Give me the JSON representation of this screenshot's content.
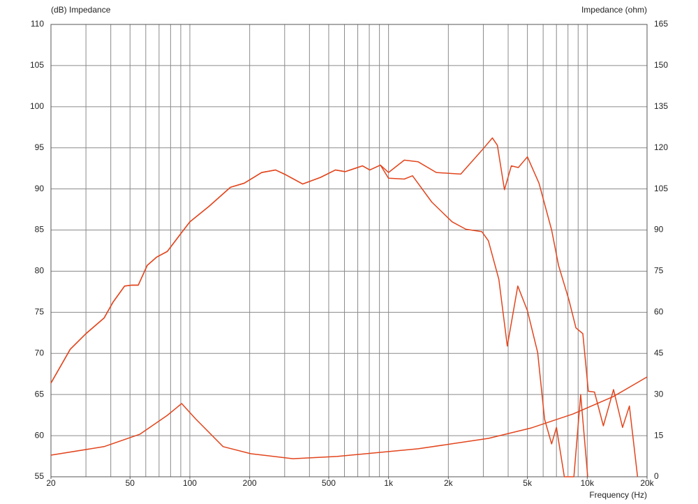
{
  "chart_data": {
    "type": "line",
    "title": "(dB)  Impedance",
    "y2_label": "Impedance (ohm)",
    "x_label": "Frequency (Hz)",
    "xscale": "log",
    "xlim": [
      20,
      20000
    ],
    "xticks": [
      20,
      50,
      100,
      200,
      500,
      {
        "value": 1000,
        "label": "1k"
      },
      {
        "value": 2000,
        "label": "2k"
      },
      {
        "value": 5000,
        "label": "5k"
      },
      {
        "value": 10000,
        "label": "10k"
      },
      {
        "value": 20000,
        "label": "20k"
      }
    ],
    "xgrid": [
      20,
      30,
      40,
      50,
      60,
      70,
      80,
      90,
      100,
      200,
      300,
      400,
      500,
      600,
      700,
      800,
      900,
      1000,
      2000,
      3000,
      4000,
      5000,
      6000,
      7000,
      8000,
      9000,
      10000,
      20000
    ],
    "ylim": [
      55,
      110
    ],
    "yticks": [
      55,
      60,
      65,
      70,
      75,
      80,
      85,
      90,
      95,
      100,
      105,
      110
    ],
    "y2lim": [
      0,
      165
    ],
    "y2ticks": [
      0,
      15,
      30,
      45,
      60,
      75,
      90,
      105,
      120,
      135,
      150,
      165
    ],
    "grid": true,
    "series": [
      {
        "color": "#e2441c",
        "x": [
          20,
          25,
          30,
          37,
          41,
          47,
          51,
          55,
          61,
          68,
          77,
          89,
          100,
          125,
          160,
          188,
          230,
          270,
          305,
          370,
          455,
          540,
          605,
          740,
          805,
          910,
          1000,
          1200,
          1410,
          1740,
          2310,
          2950,
          3330,
          3530,
          3830,
          4150,
          4500,
          5000,
          5720,
          6620,
          7170,
          8090,
          8770,
          9500,
          10130,
          10880,
          12050,
          13570,
          15060,
          16300,
          17920
        ],
        "values": [
          66.4,
          70.5,
          72.4,
          74.3,
          76.2,
          78.2,
          78.3,
          78.3,
          80.7,
          81.7,
          82.4,
          84.4,
          86,
          87.9,
          90.2,
          90.7,
          92,
          92.3,
          91.7,
          90.6,
          91.4,
          92.3,
          92.1,
          92.8,
          92.3,
          92.9,
          92,
          93.5,
          93.3,
          92,
          91.8,
          94.7,
          96.2,
          95.3,
          89.9,
          92.8,
          92.6,
          93.9,
          90.7,
          85,
          80.7,
          76.5,
          73.1,
          72.4,
          65.4,
          65.3,
          61.2,
          65.6,
          61,
          63.6,
          55
        ]
      },
      {
        "color": "#e2441c",
        "x": [
          20,
          25,
          30,
          37,
          41,
          47,
          51,
          55,
          61,
          68,
          77,
          89,
          100,
          125,
          160,
          188,
          230,
          270,
          305,
          370,
          455,
          540,
          605,
          740,
          805,
          910,
          1000,
          1200,
          1320,
          1650,
          2090,
          2450,
          2950,
          3180,
          3590,
          3960,
          4470,
          5000,
          5630,
          6100,
          6620,
          7000,
          7670,
          8570,
          9270,
          10060
        ],
        "values": [
          66.4,
          70.5,
          72.4,
          74.3,
          76.2,
          78.2,
          78.3,
          78.3,
          80.7,
          81.7,
          82.4,
          84.4,
          86,
          87.9,
          90.2,
          90.7,
          92,
          92.3,
          91.7,
          90.6,
          91.4,
          92.3,
          92.1,
          92.8,
          92.3,
          92.9,
          91.3,
          91.2,
          91.6,
          88.4,
          86,
          85.1,
          84.8,
          83.7,
          79,
          70.9,
          78.2,
          75.2,
          70.1,
          62,
          59,
          61,
          55,
          55,
          65,
          55
        ]
      },
      {
        "color": "#e2441c",
        "axis": "y2",
        "x": [
          20,
          37,
          56,
          77,
          91,
          107,
          147,
          203,
          330,
          550,
          1410,
          3180,
          5220,
          8480,
          13570,
          20000
        ],
        "values": [
          7.9,
          11,
          15.5,
          22.4,
          26.7,
          21.1,
          11,
          8.4,
          6.6,
          7.4,
          10.2,
          14,
          17.8,
          22.9,
          29.3,
          36.4
        ]
      }
    ]
  }
}
